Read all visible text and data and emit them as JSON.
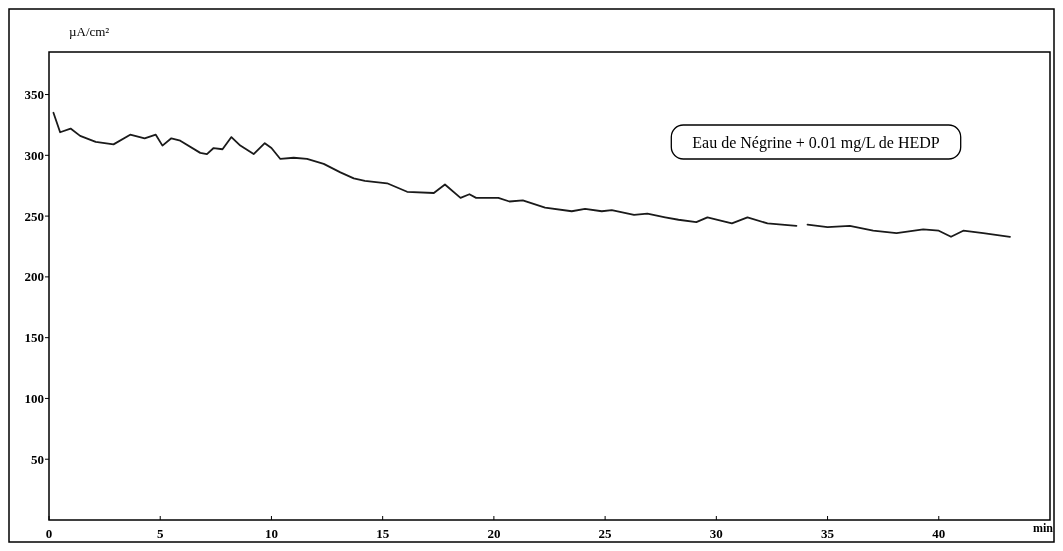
{
  "chart_data": {
    "type": "line",
    "xlabel": "min",
    "ylabel": "µA/cm²",
    "annotations": [
      "Eau de Négrine + 0.01 mg/L de HEDP"
    ],
    "xlim": [
      0,
      45
    ],
    "xticks": [
      0,
      5,
      10,
      15,
      20,
      25,
      30,
      35,
      40
    ],
    "ylim": [
      0,
      385
    ],
    "yticks": [
      50,
      100,
      150,
      200,
      250,
      300,
      350
    ],
    "grid": false,
    "series": [
      {
        "color": "#1a1a1a",
        "x": [
          0.2,
          0.5,
          0.97,
          1.4,
          2.1,
          2.9,
          3.65,
          4.3,
          4.8,
          5.1,
          5.5,
          5.9,
          6.8,
          7.1,
          7.4,
          7.8,
          8.2,
          8.6,
          9.2,
          9.7,
          10.0,
          10.4,
          11.0,
          11.6,
          12.35,
          13.1,
          13.7,
          14.2,
          15.2,
          16.1,
          17.3,
          17.8,
          18.5,
          18.9,
          19.2,
          20.2,
          20.7,
          21.3,
          22.3,
          23.5,
          24.1,
          24.85,
          25.3,
          26.3,
          26.9,
          27.7,
          28.3,
          29.1,
          29.6,
          30.7,
          31.4,
          32.3,
          33.6,
          33.8,
          34.1,
          35.0,
          36.0,
          37.05,
          38.1,
          39.3,
          40.0,
          40.55,
          41.1,
          42.0,
          43.2
        ],
        "values": [
          335,
          319,
          322,
          316,
          311,
          309,
          317,
          314,
          317,
          308,
          314,
          312,
          302,
          301,
          306,
          305,
          315,
          308,
          301,
          310,
          306,
          297,
          298,
          297,
          293,
          286,
          281,
          279,
          277,
          270,
          269,
          276,
          265,
          268,
          265,
          265,
          262,
          263,
          257,
          254,
          256,
          254,
          255,
          251,
          252,
          249,
          247,
          245,
          249,
          244,
          249,
          244,
          242,
          null,
          243,
          241,
          242,
          238,
          236,
          239,
          238,
          233,
          238,
          236,
          233
        ]
      }
    ]
  }
}
